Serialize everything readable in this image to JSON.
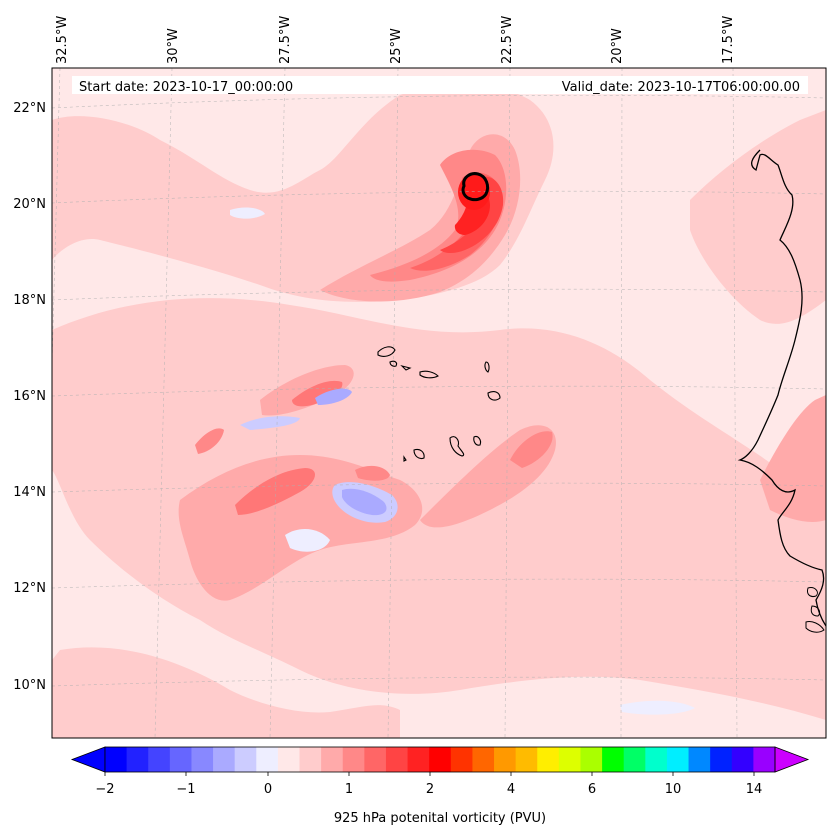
{
  "map": {
    "start_date": "Start date: 2023-10-17_00:00:00",
    "valid_date": "Valid_date: 2023-10-17T06:00:00.00",
    "lon_labels": [
      "32.5°W",
      "30°W",
      "27.5°W",
      "25°W",
      "22.5°W",
      "20°W",
      "17.5°W"
    ],
    "lat_labels": [
      "22°N",
      "20°N",
      "18°N",
      "16°N",
      "14°N",
      "12°N",
      "10°N"
    ],
    "gridlines": true,
    "projection": "conic",
    "field": "925 hPa potential vorticity",
    "features": [
      "Cape Verde islands",
      "West African coastline",
      "PV maximum near 20.3°N 23.2°W"
    ]
  },
  "colorbar": {
    "title": "925 hPa potenital vorticity (PVU)",
    "tick_labels": [
      "−2",
      "−1",
      "0",
      "1",
      "2",
      "4",
      "6",
      "10",
      "14"
    ],
    "colors": [
      "#0000ff",
      "#2222ff",
      "#4444ff",
      "#6666ff",
      "#8888ff",
      "#aaaaff",
      "#ccccff",
      "#eeeeff",
      "#ffe8e8",
      "#ffcccc",
      "#ffaaaa",
      "#ff8888",
      "#ff6666",
      "#ff4444",
      "#ff2222",
      "#ff0000",
      "#ff3300",
      "#ff6600",
      "#ff9900",
      "#ffbb00",
      "#ffee00",
      "#ddff00",
      "#aaff00",
      "#00ff00",
      "#00ff66",
      "#00ffcc",
      "#00eeff",
      "#0088ff",
      "#0022ff",
      "#3300ff",
      "#9900ff"
    ],
    "extend_min_color": "#0000ff",
    "extend_max_color": "#cc00ff"
  }
}
